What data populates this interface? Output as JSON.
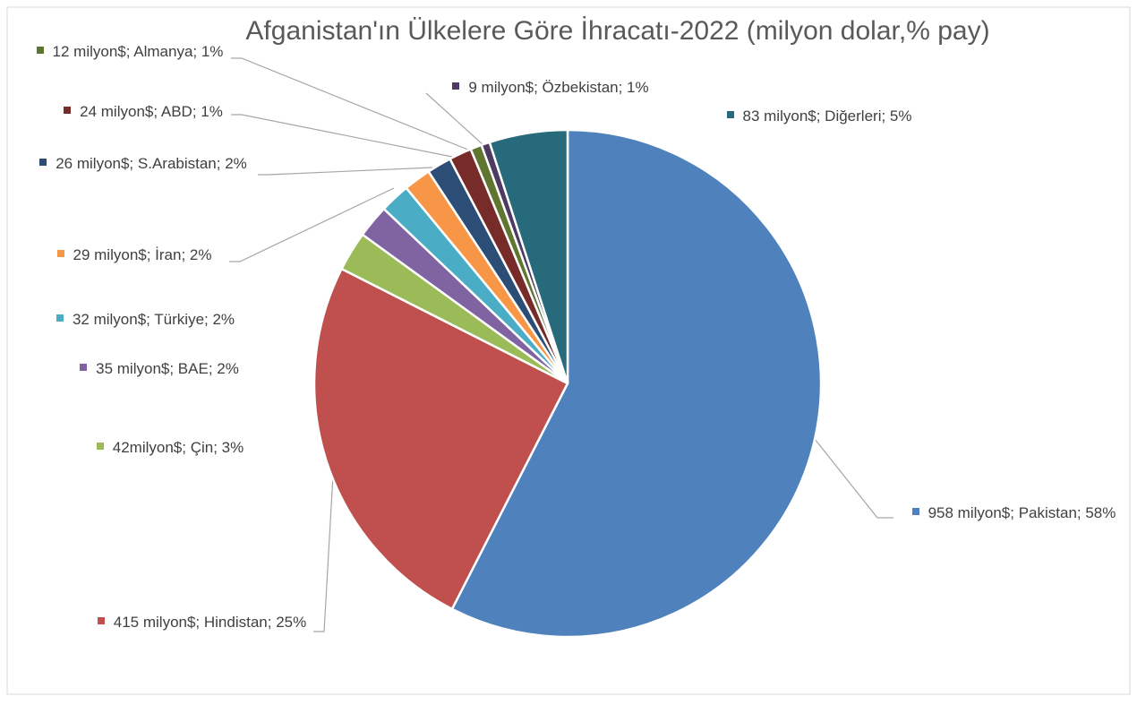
{
  "chart_data": {
    "type": "pie",
    "title": "Afganistan'ın Ülkelere Göre İhracatı-2022 (milyon dolar,% pay)",
    "categories": [
      "Pakistan",
      "Hindistan",
      "Çin",
      "BAE",
      "Türkiye",
      "İran",
      "S.Arabistan",
      "ABD",
      "Almanya",
      "Özbekistan",
      "Diğerleri"
    ],
    "values": [
      958,
      415,
      42,
      35,
      32,
      29,
      26,
      24,
      12,
      9,
      83
    ],
    "value_labels": [
      "958 milyon$; Pakistan; 58%",
      "415 milyon$; Hindistan; 25%",
      "42milyon$; Çin; 3%",
      "35 milyon$; BAE; 2%",
      "32 milyon$; Türkiye; 2%",
      "29 milyon$; İran; 2%",
      "26 milyon$; S.Arabistan; 2%",
      "24 milyon$; ABD; 1%",
      "12 milyon$; Almanya; 1%",
      "9 milyon$; Özbekistan; 1%",
      "83 milyon$; Diğerleri; 5%"
    ],
    "colors": [
      "#4f81bd",
      "#c0504d",
      "#9bbb59",
      "#8064a2",
      "#4bacc6",
      "#f79646",
      "#2c4d75",
      "#772c2a",
      "#5f7530",
      "#4d3b62",
      "#276a7c"
    ]
  }
}
